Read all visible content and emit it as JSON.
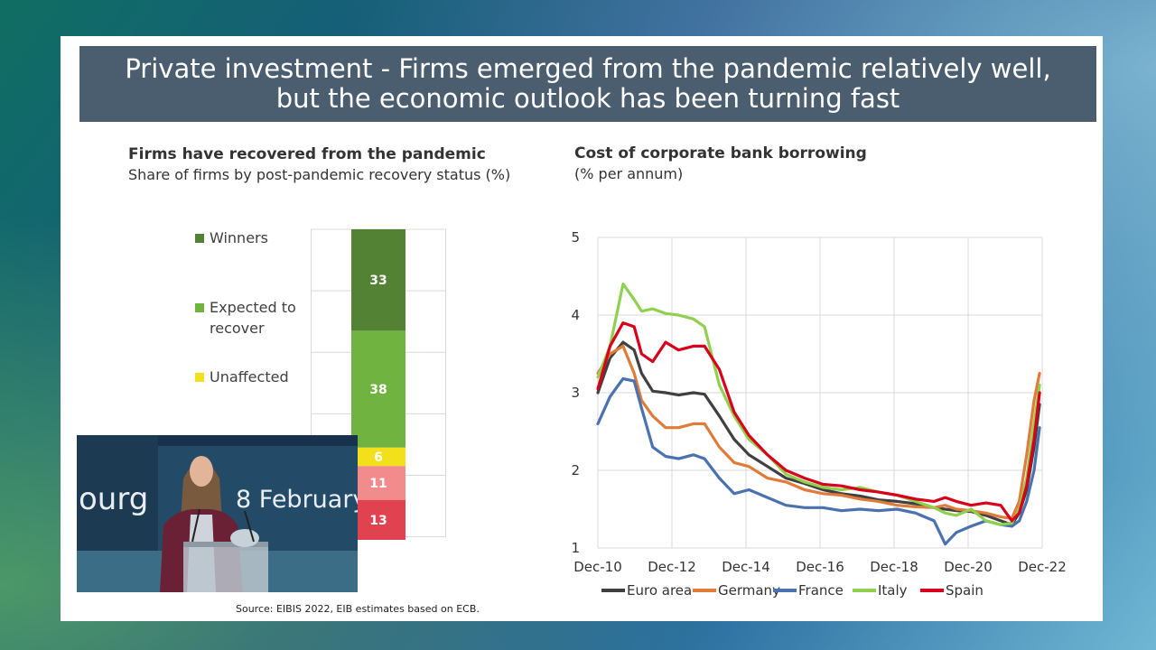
{
  "slide": {
    "title_line1": "Private investment  - Firms emerged from the pandemic relatively well,",
    "title_line2": "but the economic outlook has been turning fast",
    "source": "Source: EIBIS 2022, EIB estimates based on ECB."
  },
  "colors": {
    "title_bar": "#4a5e70",
    "winners": "#548235",
    "expected": "#70b340",
    "unaffected": "#f2e01a",
    "segment_11": "#f28c8c",
    "segment_13": "#e0424f",
    "euro_area": "#404040",
    "germany": "#e07b39",
    "france": "#4a72b0",
    "italy": "#8fd14f",
    "spain": "#d9001b"
  },
  "left_chart": {
    "heading": "Firms have recovered from the pandemic",
    "subheading": "Share of firms by post-pandemic recovery status (%)",
    "legend": [
      {
        "label_line1": "Winners",
        "label_line2": ""
      },
      {
        "label_line1": "Expected to",
        "label_line2": "recover"
      },
      {
        "label_line1": "Unaffected",
        "label_line2": ""
      }
    ]
  },
  "right_chart": {
    "heading": "Cost of corporate bank borrowing",
    "subheading": "(% per annum)"
  },
  "video_inset": {
    "backdrop_text_left": "ourg",
    "backdrop_text_right": "8 February"
  },
  "chart_data": [
    {
      "type": "bar",
      "title": "Firms have recovered from the pandemic",
      "subtitle": "Share of firms by post-pandemic recovery status (%)",
      "stacked": true,
      "segments_top_to_bottom": [
        {
          "name": "Winners",
          "value": 33
        },
        {
          "name": "Expected to recover",
          "value": 38
        },
        {
          "name": "Unaffected",
          "value": 6
        },
        {
          "name": "",
          "value": 11
        },
        {
          "name": "",
          "value": 13
        }
      ],
      "total": 101
    },
    {
      "type": "line",
      "title": "Cost of corporate bank borrowing",
      "subtitle": "(% per annum)",
      "ylim": [
        1,
        5
      ],
      "yticks": [
        "1",
        "2",
        "3",
        "4",
        "5"
      ],
      "xlim": [
        2010.92,
        2022.92
      ],
      "xticks": [
        {
          "value": 2010.92,
          "label": "Dec-10"
        },
        {
          "value": 2012.92,
          "label": "Dec-12"
        },
        {
          "value": 2014.92,
          "label": "Dec-14"
        },
        {
          "value": 2016.92,
          "label": "Dec-16"
        },
        {
          "value": 2018.92,
          "label": "Dec-18"
        },
        {
          "value": 2020.92,
          "label": "Dec-20"
        },
        {
          "value": 2022.92,
          "label": "Dec-22"
        }
      ],
      "grid": true,
      "legend_position": "bottom",
      "x": [
        2010.92,
        2011.25,
        2011.6,
        2011.9,
        2012.1,
        2012.4,
        2012.75,
        2013.1,
        2013.5,
        2013.8,
        2014.2,
        2014.6,
        2015.0,
        2015.5,
        2016.0,
        2016.5,
        2017.0,
        2017.5,
        2018.0,
        2018.5,
        2019.0,
        2019.5,
        2020.0,
        2020.3,
        2020.6,
        2021.0,
        2021.4,
        2021.8,
        2022.1,
        2022.3,
        2022.5,
        2022.7,
        2022.85
      ],
      "series": [
        {
          "name": "Euro area",
          "color": "#404040",
          "values": [
            3.0,
            3.45,
            3.65,
            3.55,
            3.25,
            3.02,
            3.0,
            2.97,
            3.0,
            2.98,
            2.7,
            2.4,
            2.2,
            2.05,
            1.9,
            1.83,
            1.75,
            1.7,
            1.67,
            1.62,
            1.6,
            1.57,
            1.52,
            1.5,
            1.48,
            1.47,
            1.42,
            1.35,
            1.3,
            1.45,
            1.75,
            2.3,
            2.85
          ]
        },
        {
          "name": "Germany",
          "color": "#e07b39",
          "values": [
            3.25,
            3.5,
            3.6,
            3.25,
            2.9,
            2.7,
            2.55,
            2.55,
            2.6,
            2.6,
            2.3,
            2.1,
            2.05,
            1.9,
            1.85,
            1.75,
            1.7,
            1.68,
            1.63,
            1.6,
            1.55,
            1.53,
            1.52,
            1.55,
            1.5,
            1.48,
            1.45,
            1.4,
            1.38,
            1.6,
            2.2,
            2.9,
            3.25
          ]
        },
        {
          "name": "France",
          "color": "#4a72b0",
          "values": [
            2.6,
            2.95,
            3.18,
            3.15,
            2.8,
            2.3,
            2.18,
            2.15,
            2.2,
            2.15,
            1.9,
            1.7,
            1.75,
            1.65,
            1.55,
            1.52,
            1.52,
            1.48,
            1.5,
            1.48,
            1.5,
            1.45,
            1.35,
            1.05,
            1.2,
            1.28,
            1.35,
            1.3,
            1.28,
            1.35,
            1.6,
            2.0,
            2.55
          ]
        },
        {
          "name": "Italy",
          "color": "#8fd14f",
          "values": [
            3.2,
            3.6,
            4.4,
            4.2,
            4.05,
            4.08,
            4.02,
            4.0,
            3.95,
            3.85,
            3.1,
            2.7,
            2.4,
            2.2,
            1.95,
            1.85,
            1.78,
            1.75,
            1.78,
            1.72,
            1.68,
            1.6,
            1.52,
            1.45,
            1.42,
            1.5,
            1.35,
            1.3,
            1.32,
            1.5,
            1.9,
            2.6,
            3.1
          ]
        },
        {
          "name": "Spain",
          "color": "#d9001b",
          "values": [
            3.05,
            3.6,
            3.9,
            3.85,
            3.5,
            3.4,
            3.65,
            3.55,
            3.6,
            3.6,
            3.3,
            2.75,
            2.45,
            2.2,
            2.0,
            1.9,
            1.82,
            1.8,
            1.75,
            1.72,
            1.68,
            1.63,
            1.6,
            1.65,
            1.6,
            1.55,
            1.58,
            1.55,
            1.35,
            1.45,
            1.8,
            2.4,
            3.0
          ]
        }
      ]
    }
  ]
}
